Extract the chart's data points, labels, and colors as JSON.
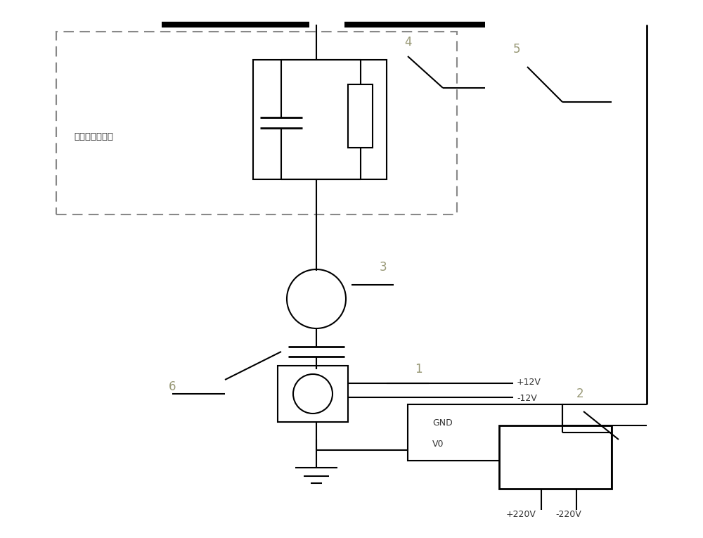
{
  "bg_color": "#ffffff",
  "line_color": "#000000",
  "dashed_color": "#555555",
  "label_color": "#888877",
  "fig_width": 10.0,
  "fig_height": 7.65,
  "dpi": 100,
  "labels": {
    "arrester_box": "避雷器等效电路",
    "label1": "1",
    "label2": "2",
    "label3": "3",
    "label4": "4",
    "label5": "5",
    "label6": "6",
    "plus12v": "+12V",
    "minus12v": "-12V",
    "gnd": "GND",
    "v0": "V0",
    "plus220v": "+220V",
    "minus220v": "-220V"
  }
}
